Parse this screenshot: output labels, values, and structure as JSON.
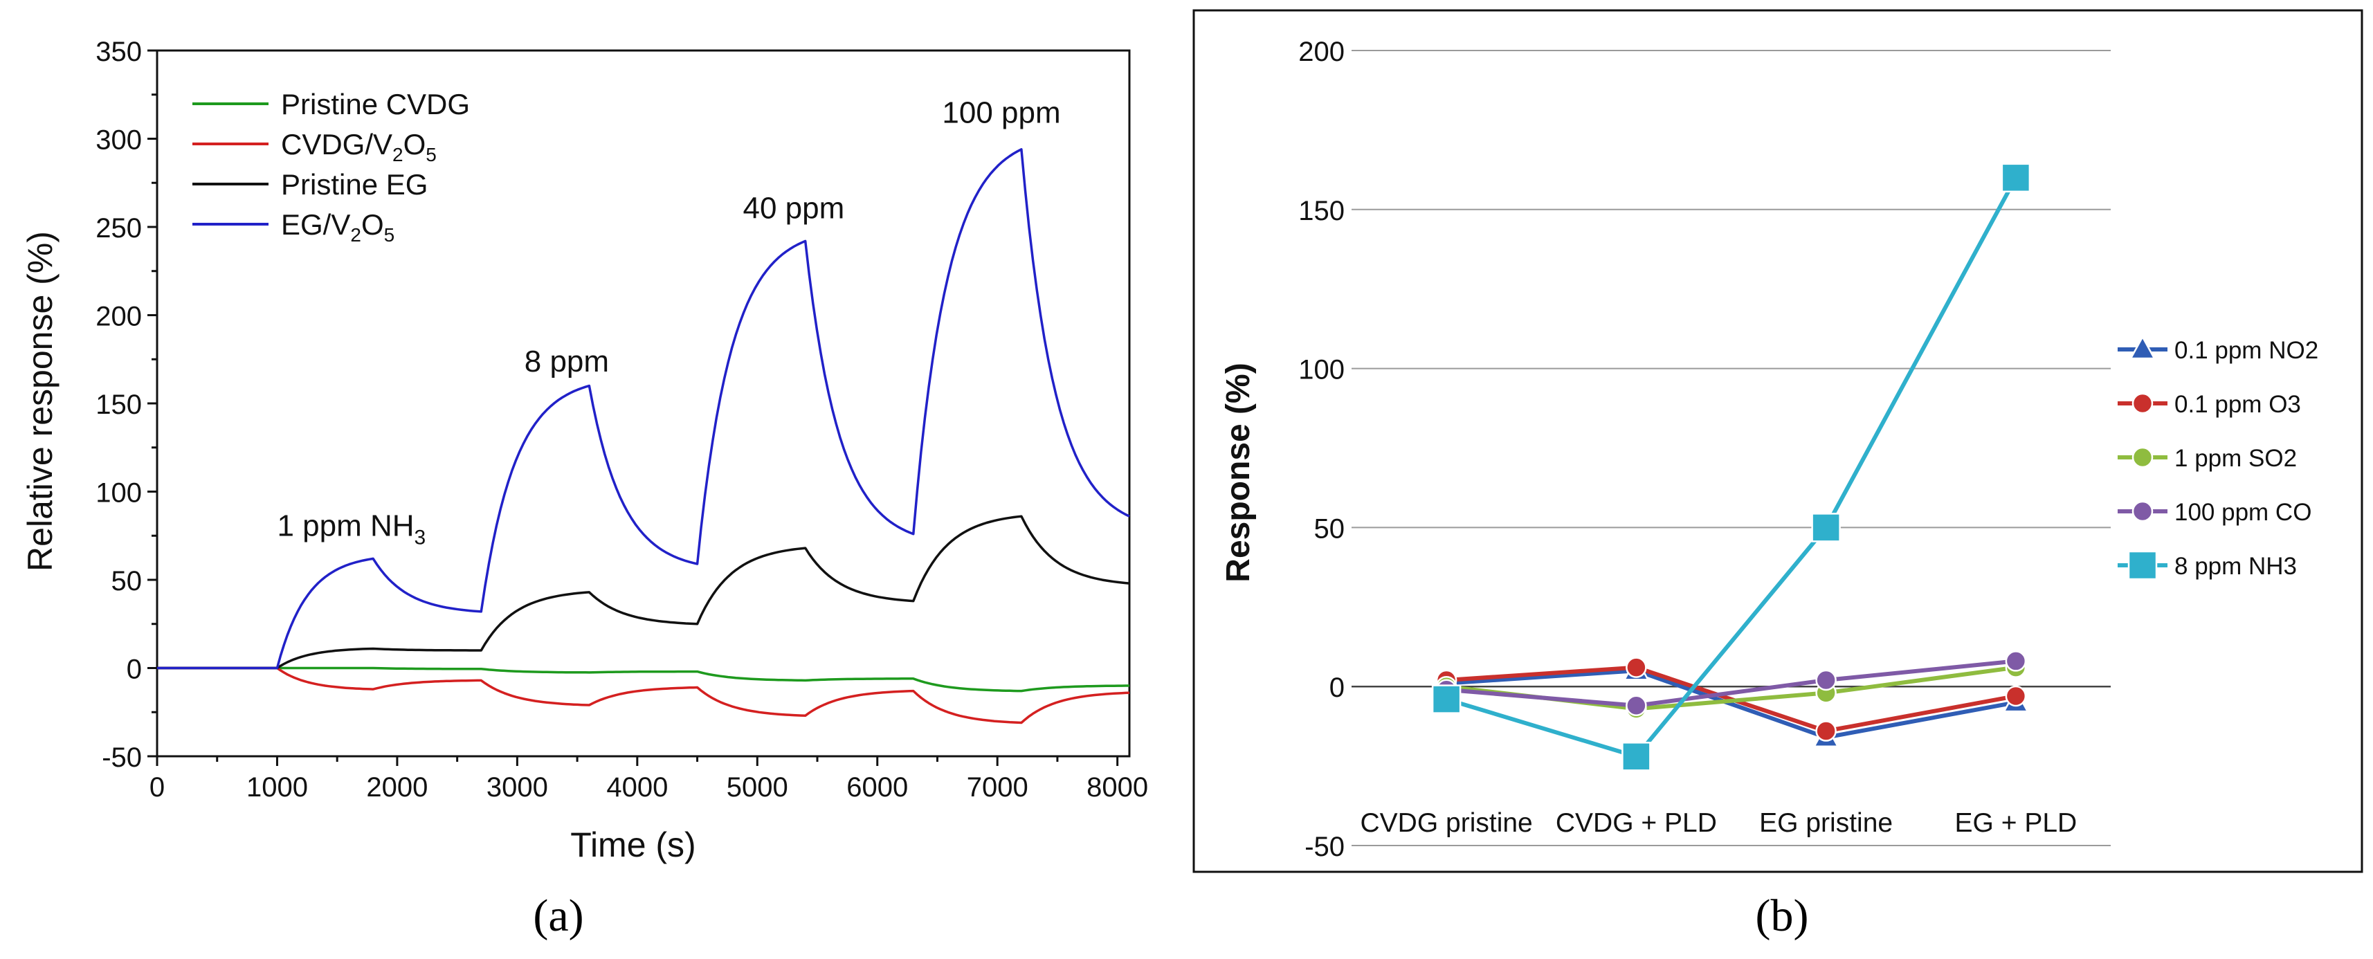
{
  "chart_data": [
    {
      "type": "line",
      "panel_label": "(a)",
      "title": "",
      "xlabel": "Time (s)",
      "ylabel": "Relative response (%)",
      "xlim": [
        0,
        8100
      ],
      "ylim": [
        -50,
        350
      ],
      "x_ticks": [
        "0",
        "1000",
        "2000",
        "3000",
        "4000",
        "5000",
        "6000",
        "7000",
        "8000"
      ],
      "y_ticks": [
        "-50",
        "0",
        "50",
        "100",
        "150",
        "200",
        "250",
        "300",
        "350"
      ],
      "legend_position": "top-left",
      "series": [
        {
          "name": "Pristine CVDG",
          "name_main": "Pristine CVDG",
          "color": "#1e9a1e",
          "x": [
            0,
            1000,
            1800,
            2700,
            3600,
            4500,
            5400,
            6300,
            7200,
            8100
          ],
          "y": [
            0,
            0,
            0,
            -0.5,
            -2.5,
            -2,
            -7,
            -6,
            -13,
            -10
          ]
        },
        {
          "name": "CVDG/V2O5",
          "name_main": "CVDG/V",
          "name_sub1": "2",
          "name_mid": "O",
          "name_sub2": "5",
          "color": "#d42020",
          "x": [
            0,
            1000,
            1800,
            2700,
            3600,
            4500,
            5400,
            6300,
            7200,
            8100
          ],
          "y": [
            0,
            0,
            -12,
            -7,
            -21,
            -11,
            -27,
            -13,
            -31,
            -14
          ]
        },
        {
          "name": "Pristine EG",
          "name_main": "Pristine EG",
          "color": "#111111",
          "x": [
            0,
            1000,
            1800,
            2700,
            3600,
            4500,
            5400,
            6300,
            7200,
            8100
          ],
          "y": [
            0,
            0,
            11,
            10,
            43,
            25,
            68,
            38,
            86,
            48
          ]
        },
        {
          "name": "EG/V2O5",
          "name_main": "EG/V",
          "name_sub1": "2",
          "name_mid": "O",
          "name_sub2": "5",
          "color": "#2121c8",
          "x": [
            0,
            1000,
            1800,
            2700,
            3600,
            4500,
            5400,
            6300,
            7200,
            8100
          ],
          "y": [
            0,
            0,
            62,
            32,
            160,
            59,
            242,
            76,
            294,
            86
          ]
        }
      ],
      "annotations": [
        {
          "text_main": "1 ppm NH",
          "text_sub": "3",
          "x": 1000,
          "y": 75
        },
        {
          "text_main": "8 ppm",
          "text_sub": "",
          "x": 3060,
          "y": 168
        },
        {
          "text_main": "40 ppm",
          "text_sub": "",
          "x": 4880,
          "y": 255
        },
        {
          "text_main": "100 ppm",
          "text_sub": "",
          "x": 6540,
          "y": 309
        }
      ]
    },
    {
      "type": "line",
      "panel_label": "(b)",
      "title": "",
      "xlabel": "",
      "ylabel": "Response (%)",
      "ylim": [
        -50,
        200
      ],
      "y_ticks": [
        "-50",
        "0",
        "50",
        "100",
        "150",
        "200"
      ],
      "categories": [
        "CVDG pristine",
        "CVDG + PLD",
        "EG pristine",
        "EG + PLD"
      ],
      "grid": true,
      "legend_position": "right",
      "series": [
        {
          "name": "0.1 ppm NO2",
          "color": "#2f5db5",
          "marker": "triangle",
          "values": [
            1,
            5,
            -16,
            -5
          ]
        },
        {
          "name": "0.1 ppm O3",
          "color": "#c9302c",
          "marker": "circle",
          "values": [
            2,
            6,
            -14,
            -3
          ]
        },
        {
          "name": "1 ppm SO2",
          "color": "#8fbc3f",
          "marker": "circle",
          "values": [
            0,
            -7,
            -2,
            6
          ]
        },
        {
          "name": "100 ppm CO",
          "color": "#7f5aa6",
          "marker": "circle",
          "values": [
            -1,
            -6,
            2,
            8
          ]
        },
        {
          "name": "8 ppm NH3",
          "color": "#2fb0cc",
          "marker": "square",
          "values": [
            -4,
            -22,
            50,
            160
          ]
        }
      ]
    }
  ]
}
